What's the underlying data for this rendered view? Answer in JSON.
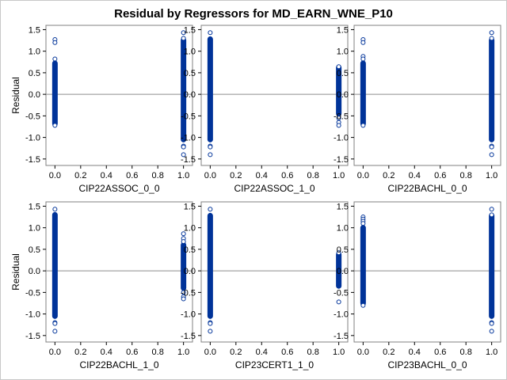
{
  "title": "Residual by Regressors for MD_EARN_WNE_P10",
  "chart_data": {
    "type": "scatter",
    "title": "Residual by Regressors for MD_EARN_WNE_P10",
    "ylabel": "Residual",
    "ylim": [
      -1.65,
      1.6
    ],
    "xlim": [
      -0.07,
      1.07
    ],
    "x_ticks": [
      "0.0",
      "0.2",
      "0.4",
      "0.6",
      "0.8",
      "1.0"
    ],
    "y_ticks": [
      "1.5",
      "1.0",
      "0.5",
      "0.0",
      "-0.5",
      "-1.0",
      "-1.5"
    ],
    "reference_line_y": 0,
    "marker": "open-circle",
    "marker_color": "#003399",
    "axis_color": "#808080",
    "panels": [
      {
        "xlabel": "CIP22ASSOC_0_0",
        "groups": [
          {
            "x": 0.0,
            "band": [
              -0.68,
              0.72
            ],
            "outliers": [
              1.27,
              1.2,
              0.82,
              -0.72
            ]
          },
          {
            "x": 1.0,
            "band": [
              -1.05,
              1.25
            ],
            "outliers": [
              1.43,
              1.3,
              -1.2,
              -1.22,
              -1.4
            ]
          }
        ]
      },
      {
        "xlabel": "CIP22ASSOC_1_0",
        "groups": [
          {
            "x": 0.0,
            "band": [
              -1.05,
              1.28
            ],
            "outliers": [
              1.43,
              -1.2,
              -1.22,
              -1.4
            ]
          },
          {
            "x": 1.0,
            "band": [
              -0.45,
              0.62
            ],
            "outliers": [
              0.64,
              -0.55,
              -0.65,
              -0.72
            ]
          }
        ]
      },
      {
        "xlabel": "CIP22BACHL_0_0",
        "groups": [
          {
            "x": 0.0,
            "band": [
              -0.68,
              0.72
            ],
            "outliers": [
              1.27,
              1.2,
              0.88,
              0.82,
              -0.72
            ]
          },
          {
            "x": 1.0,
            "band": [
              -1.05,
              1.25
            ],
            "outliers": [
              1.43,
              1.3,
              -1.2,
              -1.22,
              -1.4
            ]
          }
        ]
      },
      {
        "xlabel": "CIP22BACHL_1_0",
        "groups": [
          {
            "x": 0.0,
            "band": [
              -1.05,
              1.3
            ],
            "outliers": [
              1.43,
              -1.2,
              -1.22,
              -1.4
            ]
          },
          {
            "x": 1.0,
            "band": [
              -0.4,
              0.6
            ],
            "outliers": [
              0.86,
              0.75,
              0.68,
              -0.5,
              -0.6,
              -0.65
            ]
          }
        ]
      },
      {
        "xlabel": "CIP23CERT1_1_0",
        "groups": [
          {
            "x": 0.0,
            "band": [
              -1.05,
              1.28
            ],
            "outliers": [
              1.43,
              -1.2,
              -1.22,
              -1.4
            ]
          },
          {
            "x": 1.0,
            "band": [
              -0.35,
              0.38
            ],
            "outliers": [
              0.42,
              -0.72
            ]
          }
        ]
      },
      {
        "xlabel": "CIP23BACHL_0_0",
        "groups": [
          {
            "x": 0.0,
            "band": [
              -0.75,
              1.0
            ],
            "outliers": [
              1.25,
              1.2,
              1.15,
              1.1,
              -0.8
            ]
          },
          {
            "x": 1.0,
            "band": [
              -1.05,
              1.28
            ],
            "outliers": [
              1.43,
              1.3,
              -1.2,
              -1.22,
              -1.4
            ]
          }
        ]
      }
    ]
  }
}
